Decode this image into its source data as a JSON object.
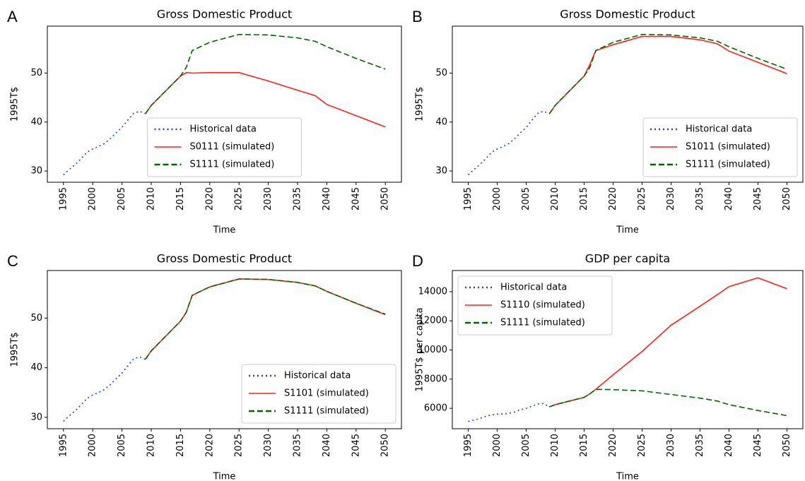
{
  "chart_data": [
    {
      "type": "line",
      "panel_label": "A",
      "title": "Gross Domestic Product",
      "x_label": "Time",
      "y_label": "1995T$",
      "x": [
        1995,
        1996,
        1997,
        1998,
        1999,
        2000,
        2001,
        2002,
        2003,
        2004,
        2005,
        2006,
        2007,
        2008,
        2009,
        2010,
        2012,
        2015,
        2016,
        2017,
        2020,
        2025,
        2030,
        2035,
        2038,
        2040,
        2045,
        2050
      ],
      "xlim": [
        1992.25,
        2052.75
      ],
      "xticks": [
        1995,
        2000,
        2005,
        2010,
        2015,
        2020,
        2025,
        2030,
        2035,
        2040,
        2045,
        2050
      ],
      "ylim": [
        27.7,
        59.6
      ],
      "yticks": [
        30,
        40,
        50
      ],
      "legend": "lower center",
      "series": [
        {
          "name": "Historical data",
          "color": "#1f3fe0",
          "linestyle": "dotted",
          "values": [
            29.2,
            30.3,
            31.3,
            32.5,
            33.8,
            34.5,
            35.0,
            35.6,
            36.6,
            37.8,
            38.9,
            40.4,
            41.8,
            42.2,
            41.7,
            null,
            null,
            null,
            null,
            null,
            null,
            null,
            null,
            null,
            null,
            null,
            null,
            null
          ]
        },
        {
          "name": "S0111 (simulated)",
          "color": "#ff2020",
          "linestyle": "solid",
          "values": [
            null,
            null,
            null,
            null,
            null,
            null,
            null,
            null,
            null,
            null,
            null,
            null,
            null,
            null,
            41.7,
            43.4,
            45.8,
            49.4,
            50.1,
            50.0,
            50.1,
            50.1,
            48.4,
            46.5,
            45.4,
            43.6,
            41.3,
            39.0
          ]
        },
        {
          "name": "S1111 (simulated)",
          "color": "#006400",
          "linestyle": "dashed",
          "values": [
            null,
            null,
            null,
            null,
            null,
            null,
            null,
            null,
            null,
            null,
            null,
            null,
            null,
            null,
            41.7,
            43.4,
            45.8,
            49.4,
            51.2,
            54.6,
            56.3,
            57.9,
            57.8,
            57.2,
            56.5,
            55.4,
            53.0,
            50.8
          ]
        }
      ]
    },
    {
      "type": "line",
      "panel_label": "B",
      "title": "Gross Domestic Product",
      "x_label": "Time",
      "y_label": "1995T$",
      "x": [
        1995,
        1996,
        1997,
        1998,
        1999,
        2000,
        2001,
        2002,
        2003,
        2004,
        2005,
        2006,
        2007,
        2008,
        2009,
        2010,
        2012,
        2015,
        2016,
        2017,
        2020,
        2025,
        2030,
        2035,
        2038,
        2040,
        2045,
        2050
      ],
      "xlim": [
        1992.25,
        2052.75
      ],
      "xticks": [
        1995,
        2000,
        2005,
        2010,
        2015,
        2020,
        2025,
        2030,
        2035,
        2040,
        2045,
        2050
      ],
      "ylim": [
        27.7,
        59.6
      ],
      "yticks": [
        30,
        40,
        50
      ],
      "legend": "lower right",
      "series": [
        {
          "name": "Historical data",
          "color": "#1f3fe0",
          "linestyle": "dotted",
          "values": [
            29.2,
            30.3,
            31.3,
            32.5,
            33.8,
            34.5,
            35.0,
            35.6,
            36.6,
            37.8,
            38.9,
            40.4,
            41.8,
            42.2,
            41.7,
            null,
            null,
            null,
            null,
            null,
            null,
            null,
            null,
            null,
            null,
            null,
            null,
            null
          ]
        },
        {
          "name": "S1011 (simulated)",
          "color": "#ff2020",
          "linestyle": "solid",
          "values": [
            null,
            null,
            null,
            null,
            null,
            null,
            null,
            null,
            null,
            null,
            null,
            null,
            null,
            null,
            41.7,
            43.4,
            45.8,
            49.4,
            51.8,
            54.6,
            55.8,
            57.5,
            57.5,
            56.8,
            56.0,
            54.5,
            52.2,
            49.9
          ]
        },
        {
          "name": "S1111 (simulated)",
          "color": "#006400",
          "linestyle": "dashed",
          "values": [
            null,
            null,
            null,
            null,
            null,
            null,
            null,
            null,
            null,
            null,
            null,
            null,
            null,
            null,
            41.7,
            43.4,
            45.8,
            49.4,
            51.2,
            54.6,
            56.3,
            57.9,
            57.8,
            57.2,
            56.5,
            55.4,
            53.0,
            50.8
          ]
        }
      ]
    },
    {
      "type": "line",
      "panel_label": "C",
      "title": "Gross Domestic Product",
      "x_label": "Time",
      "y_label": "1995T$",
      "x": [
        1995,
        1996,
        1997,
        1998,
        1999,
        2000,
        2001,
        2002,
        2003,
        2004,
        2005,
        2006,
        2007,
        2008,
        2009,
        2010,
        2012,
        2015,
        2016,
        2017,
        2020,
        2025,
        2030,
        2035,
        2038,
        2040,
        2045,
        2050
      ],
      "xlim": [
        1992.25,
        2052.75
      ],
      "xticks": [
        1995,
        2000,
        2005,
        2010,
        2015,
        2020,
        2025,
        2030,
        2035,
        2040,
        2045,
        2050
      ],
      "ylim": [
        27.7,
        59.6
      ],
      "yticks": [
        30,
        40,
        50
      ],
      "legend": "lower right",
      "series": [
        {
          "name": "Historical data",
          "color": "#1f3fe0",
          "linestyle": "dotted",
          "values": [
            29.2,
            30.3,
            31.3,
            32.5,
            33.8,
            34.5,
            35.0,
            35.6,
            36.6,
            37.8,
            38.9,
            40.4,
            41.8,
            42.2,
            41.7,
            null,
            null,
            null,
            null,
            null,
            null,
            null,
            null,
            null,
            null,
            null,
            null,
            null
          ]
        },
        {
          "name": "S1101 (simulated)",
          "color": "#ff2020",
          "linestyle": "solid",
          "values": [
            null,
            null,
            null,
            null,
            null,
            null,
            null,
            null,
            null,
            null,
            null,
            null,
            null,
            null,
            41.7,
            43.4,
            45.8,
            49.4,
            51.2,
            54.6,
            56.3,
            57.9,
            57.8,
            57.2,
            56.5,
            55.4,
            53.0,
            50.7
          ]
        },
        {
          "name": "S1111 (simulated)",
          "color": "#006400",
          "linestyle": "dashed",
          "values": [
            null,
            null,
            null,
            null,
            null,
            null,
            null,
            null,
            null,
            null,
            null,
            null,
            null,
            null,
            41.7,
            43.4,
            45.8,
            49.4,
            51.2,
            54.6,
            56.3,
            57.9,
            57.8,
            57.2,
            56.5,
            55.4,
            53.0,
            50.8
          ]
        }
      ]
    },
    {
      "type": "line",
      "panel_label": "D",
      "title": "GDP per capita",
      "x_label": "Time",
      "y_label": "1995T$ per capita",
      "x": [
        1995,
        1996,
        1997,
        1998,
        1999,
        2000,
        2001,
        2002,
        2003,
        2004,
        2005,
        2006,
        2007,
        2008,
        2009,
        2010,
        2012,
        2015,
        2016,
        2017,
        2020,
        2025,
        2030,
        2035,
        2038,
        2040,
        2045,
        2050
      ],
      "xlim": [
        1992.25,
        2052.75
      ],
      "xticks": [
        1995,
        2000,
        2005,
        2010,
        2015,
        2020,
        2025,
        2030,
        2035,
        2040,
        2045,
        2050
      ],
      "ylim": [
        4600,
        15450
      ],
      "yticks": [
        6000,
        8000,
        10000,
        12000,
        14000
      ],
      "legend": "upper left",
      "series": [
        {
          "name": "Historical data",
          "color": "#1f3fe0",
          "linestyle": "dotted",
          "values": [
            5100,
            5200,
            5300,
            5450,
            5550,
            5600,
            5620,
            5650,
            5750,
            5900,
            6000,
            6150,
            6300,
            6330,
            6100,
            null,
            null,
            null,
            null,
            null,
            null,
            null,
            null,
            null,
            null,
            null,
            null,
            null
          ]
        },
        {
          "name": "S1110 (simulated)",
          "color": "#ff2020",
          "linestyle": "solid",
          "values": [
            null,
            null,
            null,
            null,
            null,
            null,
            null,
            null,
            null,
            null,
            null,
            null,
            null,
            null,
            6100,
            6250,
            6450,
            6750,
            7000,
            7300,
            8300,
            9900,
            11700,
            13000,
            13800,
            14350,
            14950,
            14200
          ]
        },
        {
          "name": "S1111 (simulated)",
          "color": "#006400",
          "linestyle": "dashed",
          "values": [
            null,
            null,
            null,
            null,
            null,
            null,
            null,
            null,
            null,
            null,
            null,
            null,
            null,
            null,
            6100,
            6250,
            6450,
            6750,
            7000,
            7300,
            7280,
            7200,
            6950,
            6700,
            6500,
            6250,
            5850,
            5500
          ]
        }
      ]
    }
  ]
}
